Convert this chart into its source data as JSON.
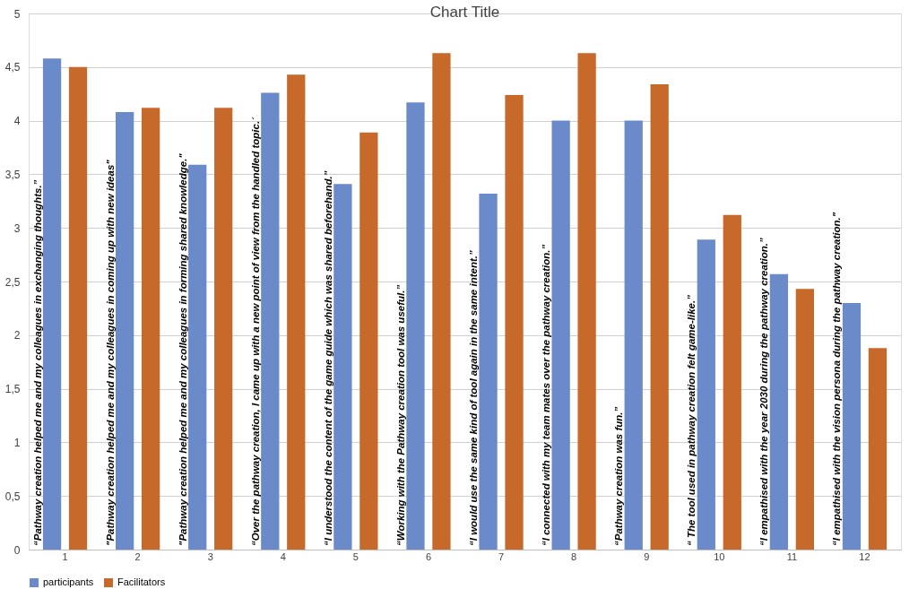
{
  "chart_data": {
    "type": "bar",
    "title": "Chart Title",
    "categories": [
      "1",
      "2",
      "3",
      "4",
      "5",
      "6",
      "7",
      "8",
      "9",
      "10",
      "11",
      "12"
    ],
    "series": [
      {
        "name": "participants",
        "color": "#6a8ac9",
        "values": [
          4.58,
          4.08,
          3.59,
          4.26,
          3.41,
          4.17,
          3.32,
          4.0,
          4.0,
          2.89,
          2.57,
          2.3
        ]
      },
      {
        "name": "Facilitators",
        "color": "#c8692c",
        "values": [
          4.5,
          4.12,
          4.12,
          4.43,
          3.89,
          4.63,
          4.24,
          4.63,
          4.34,
          3.12,
          2.43,
          1.88
        ]
      }
    ],
    "ylim": [
      0,
      5
    ],
    "yticks": [
      0,
      {
        "value": 0.5,
        "label": "0,5"
      },
      1,
      {
        "value": 1.5,
        "label": "1,5"
      },
      2,
      {
        "value": 2.5,
        "label": "2,5"
      },
      3,
      {
        "value": 3.5,
        "label": "3,5"
      },
      4,
      {
        "value": 4.5,
        "label": "4,5"
      },
      5
    ],
    "grid": "y",
    "legend": "bottom",
    "annotations": [
      {
        "text": "“Pathway creation helped me and my colleagues in exchanging thoughts.”",
        "x": "1",
        "y": 0
      },
      {
        "text": "\"Pathway creation helped me and my colleagues in coming up with new ideas\"",
        "x": "2",
        "y": 0
      },
      {
        "text": "\"Pathway creation helped me and my colleagues in forming shared knowledge.\"",
        "x": "3",
        "y": 0
      },
      {
        "text": "“Over the pathway creation, I came up with a new point of view from the handled topic.´",
        "x": "4",
        "y": 0
      },
      {
        "text": "“I understood the content of the game guide which was shared beforehand.”",
        "x": "5",
        "y": 0
      },
      {
        "text": "“Working with the Pathway creation tool was useful.”",
        "x": "6",
        "y": 0
      },
      {
        "text": "“I would use the same kind of tool again in the same intent.”",
        "x": "7",
        "y": 0
      },
      {
        "text": "“I connected with my team mates over the pathway creation.”",
        "x": "8",
        "y": 0
      },
      {
        "text": "“Pathway creation was fun.”",
        "x": "9",
        "y": 0
      },
      {
        "text": "“ The tool used in pathway creation felt game-like.”",
        "x": "10",
        "y": 0
      },
      {
        "text": "“I empathised with the year 2030 during the pathway creation.”",
        "x": "11",
        "y": 0
      },
      {
        "text": "“I empathised with the vision persona during the pathway creation.\"",
        "x": "12",
        "y": 0
      }
    ]
  }
}
